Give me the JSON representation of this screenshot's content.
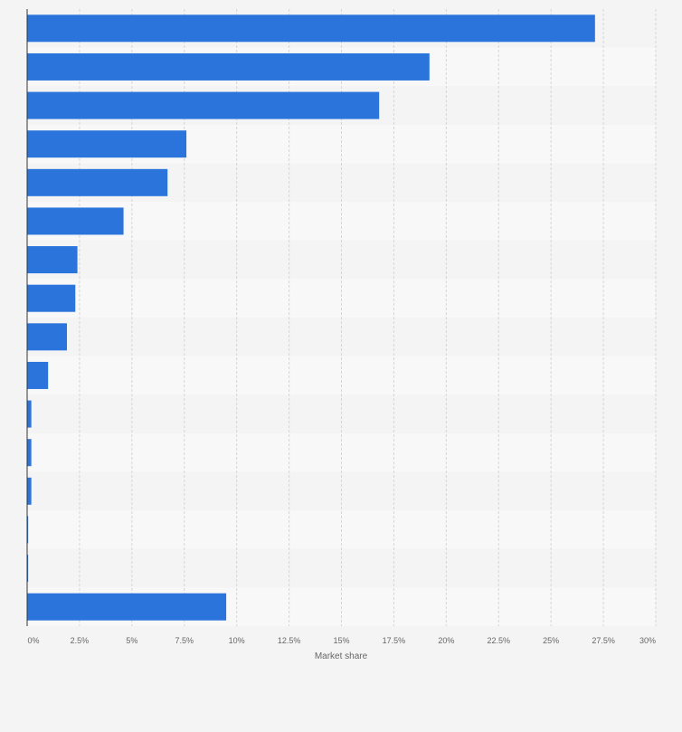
{
  "chart_data": {
    "type": "bar",
    "orientation": "horizontal",
    "categories": [
      "",
      "",
      "",
      "",
      "",
      "",
      "",
      "",
      "",
      "",
      "",
      "",
      "",
      "",
      "",
      ""
    ],
    "values": [
      27.1,
      19.2,
      16.8,
      7.6,
      6.7,
      4.6,
      2.4,
      2.3,
      1.9,
      1.0,
      0.2,
      0.2,
      0.2,
      0.05,
      0.05,
      9.5
    ],
    "xlabel": "Market share",
    "ylabel": "",
    "xlim": [
      0,
      30
    ],
    "xticks": [
      0,
      2.5,
      5,
      7.5,
      10,
      12.5,
      15,
      17.5,
      20,
      22.5,
      25,
      27.5,
      30
    ],
    "tick_labels": [
      "0%",
      "2.5%",
      "5%",
      "7.5%",
      "10%",
      "12.5%",
      "15%",
      "17.5%",
      "20%",
      "22.5%",
      "25%",
      "27.5%",
      "30%"
    ],
    "grid": true,
    "legend": "none",
    "bar_color": "#2a74dc",
    "row_colors": [
      "#f4f4f5",
      "#f8f8f9"
    ],
    "grid_color": "#d6d6d6"
  }
}
